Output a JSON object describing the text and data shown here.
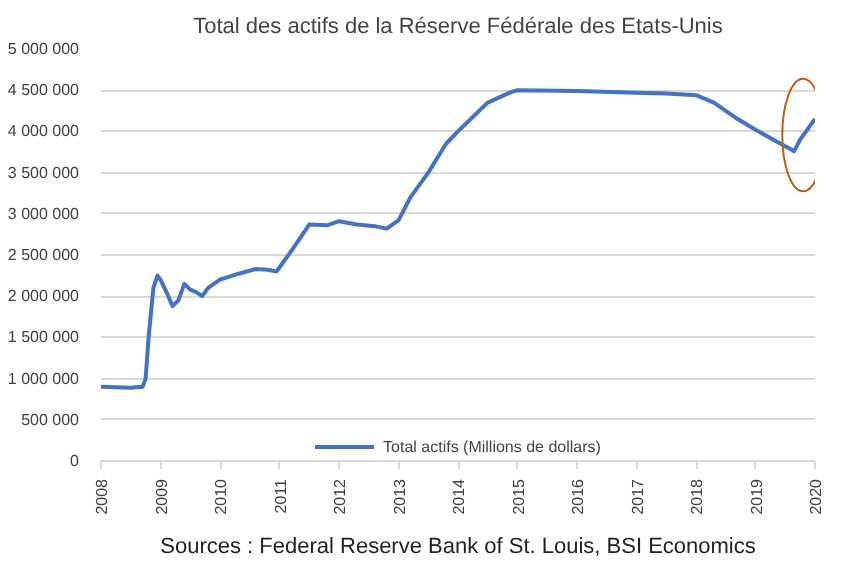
{
  "chart_data": {
    "type": "line",
    "title": "Total des actifs de la Réserve Fédérale des Etats-Unis",
    "x": [
      2008.0,
      2008.5,
      2008.7,
      2008.75,
      2008.8,
      2008.88,
      2008.95,
      2009.0,
      2009.1,
      2009.2,
      2009.3,
      2009.4,
      2009.5,
      2009.6,
      2009.7,
      2009.8,
      2010.0,
      2010.3,
      2010.6,
      2010.8,
      2010.95,
      2011.2,
      2011.5,
      2011.8,
      2012.0,
      2012.3,
      2012.6,
      2012.8,
      2013.0,
      2013.2,
      2013.5,
      2013.8,
      2014.0,
      2014.5,
      2014.9,
      2015.0,
      2016.0,
      2017.0,
      2017.5,
      2018.0,
      2018.3,
      2018.7,
      2019.0,
      2019.3,
      2019.6,
      2019.65,
      2019.75,
      2019.85,
      2020.0
    ],
    "series": [
      {
        "name": "Total actifs (Millions de dollars)",
        "color": "#4472c4",
        "values": [
          900000,
          890000,
          900000,
          1000000,
          1500000,
          2100000,
          2250000,
          2200000,
          2050000,
          1880000,
          1950000,
          2150000,
          2080000,
          2050000,
          2000000,
          2100000,
          2200000,
          2270000,
          2330000,
          2320000,
          2300000,
          2550000,
          2870000,
          2860000,
          2910000,
          2870000,
          2850000,
          2820000,
          2920000,
          3200000,
          3500000,
          3850000,
          4000000,
          4350000,
          4480000,
          4500000,
          4490000,
          4470000,
          4460000,
          4440000,
          4350000,
          4150000,
          4020000,
          3900000,
          3780000,
          3760000,
          3900000,
          4000000,
          4150000
        ]
      }
    ],
    "xlim": [
      2008,
      2020
    ],
    "xticks": [
      2008,
      2009,
      2010,
      2011,
      2012,
      2013,
      2014,
      2015,
      2016,
      2017,
      2018,
      2019,
      2020
    ],
    "ylim": [
      0,
      5000000
    ],
    "yticks": [
      {
        "value": 0,
        "label": "0"
      },
      {
        "value": 500000,
        "label": "500 000"
      },
      {
        "value": 1000000,
        "label": "1 000 000"
      },
      {
        "value": 1500000,
        "label": "1 500 000"
      },
      {
        "value": 2000000,
        "label": "2 000 000"
      },
      {
        "value": 2500000,
        "label": "2 500 000"
      },
      {
        "value": 3000000,
        "label": "3 000 000"
      },
      {
        "value": 3500000,
        "label": "3 500 000"
      },
      {
        "value": 4000000,
        "label": "4 000 000"
      },
      {
        "value": 4500000,
        "label": "4 500 000"
      },
      {
        "value": 5000000,
        "label": "5 000 000"
      }
    ],
    "grid": "y",
    "legend": "bottom",
    "line_style": "solid",
    "annotations": [
      "Sources : Federal Reserve Bank of St. Louis, BSI Economics"
    ]
  }
}
